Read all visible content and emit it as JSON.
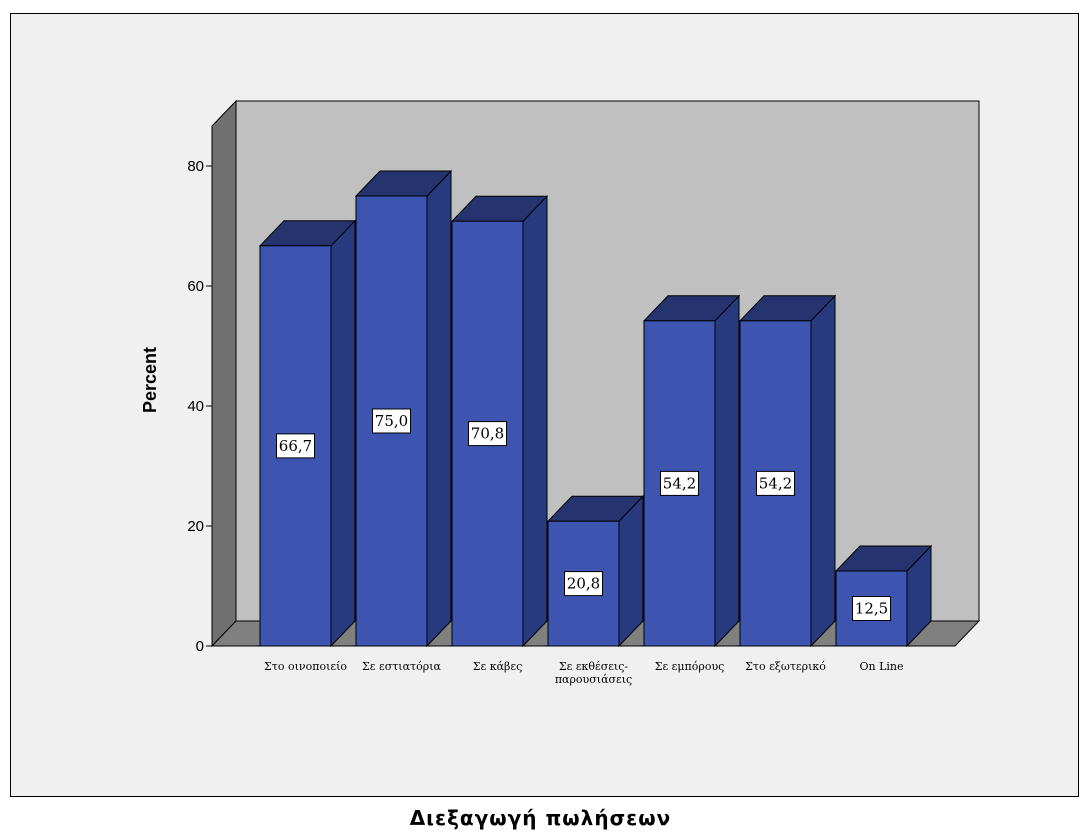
{
  "caption": "Διεξαγωγή πωλήσεων",
  "chart_data": {
    "type": "bar",
    "style": "3d",
    "title": "",
    "xlabel": "",
    "ylabel": "Percent",
    "ylim": [
      0,
      90
    ],
    "yticks": [
      0,
      20,
      40,
      60,
      80
    ],
    "grid": false,
    "legend": "none",
    "categories": [
      [
        "Στο οινοποιείο"
      ],
      [
        "Σε εστιατόρια"
      ],
      [
        "Σε κάβες"
      ],
      [
        "Σε εκθέσεις-",
        "παρουσιάσεις"
      ],
      [
        "Σε εμπόρους"
      ],
      [
        "Στο εξωτερικό"
      ],
      [
        "On Line"
      ]
    ],
    "values": [
      66.7,
      75.0,
      70.8,
      20.8,
      54.2,
      54.2,
      12.5
    ],
    "data_labels": [
      "66,7",
      "75,0",
      "70,8",
      "20,8",
      "54,2",
      "54,2",
      "12,5"
    ],
    "colors": {
      "bar_front": "#3d55b0",
      "bar_top": "#25346e",
      "bar_side": "#263a7d",
      "wall": "#c0c0c0",
      "floor": "#808080",
      "left_wall": "#707070",
      "background": "#f0f0f0"
    }
  }
}
